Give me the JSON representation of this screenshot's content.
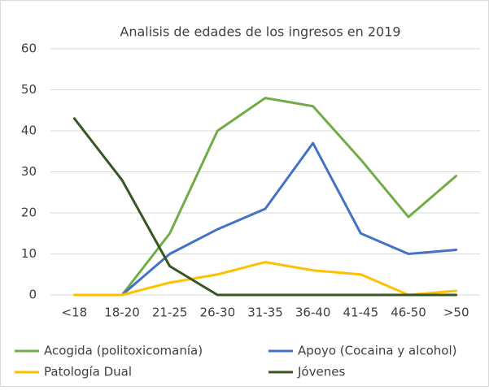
{
  "chart_data": {
    "type": "line",
    "title": "Analisis de edades de los ingresos en 2019",
    "categories": [
      "<18",
      "18-20",
      "21-25",
      "26-30",
      "31-35",
      "36-40",
      "41-45",
      "46-50",
      ">50"
    ],
    "series": [
      {
        "name": "Acogida (politoxicomanía)",
        "color": "#70ad47",
        "values": [
          null,
          0,
          15,
          40,
          48,
          46,
          33,
          19,
          29
        ]
      },
      {
        "name": "Apoyo (Cocaina y alcohol)",
        "color": "#4472c4",
        "values": [
          null,
          0,
          10,
          16,
          21,
          37,
          15,
          10,
          11
        ]
      },
      {
        "name": "Patología Dual",
        "color": "#ffc000",
        "values": [
          0,
          0,
          3,
          5,
          8,
          6,
          5,
          0,
          1
        ]
      },
      {
        "name": "Jóvenes",
        "color": "#375623",
        "values": [
          43,
          28,
          7,
          0,
          0,
          0,
          0,
          0,
          0
        ]
      }
    ],
    "ylim": [
      0,
      60
    ],
    "yticks": [
      0,
      10,
      20,
      30,
      40,
      50,
      60
    ],
    "grid": true
  }
}
